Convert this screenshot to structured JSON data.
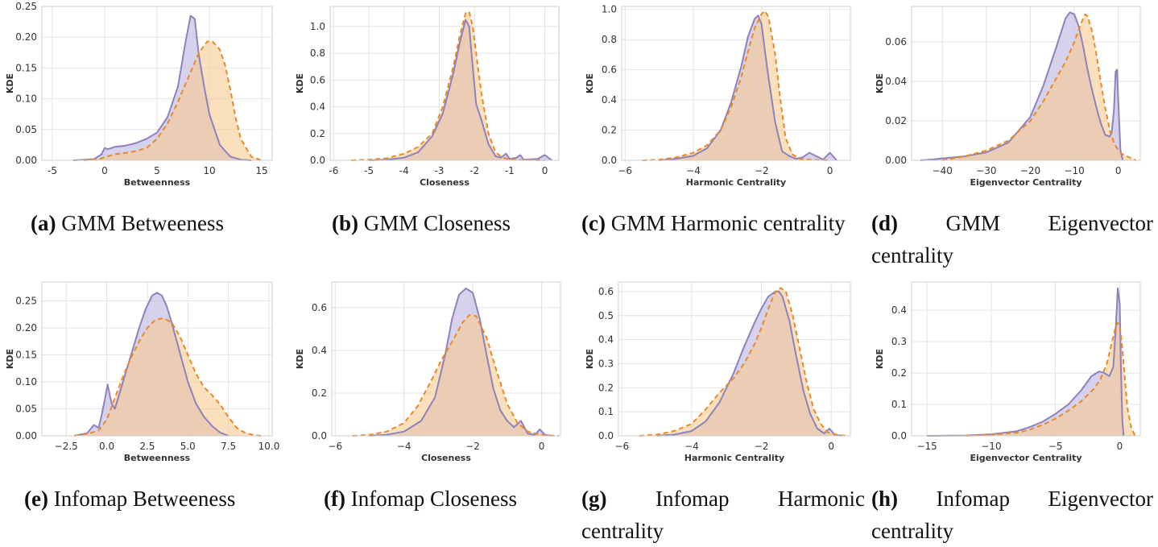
{
  "colors": {
    "purple_line": "#8e82bd",
    "purple_fill": "#cac3e6",
    "orange_line": "#e8892a",
    "orange_fill": "#f6c98f"
  },
  "chart_data": [
    {
      "type": "area",
      "id": "a",
      "xlabel": "Betweenness",
      "ylabel": "KDE",
      "xlim": [
        -6,
        16
      ],
      "ylim": [
        0,
        0.25
      ],
      "xticks": [
        -5,
        0,
        5,
        10,
        15
      ],
      "xtick_labels": [
        "-5",
        "0",
        "5",
        "10",
        "15"
      ],
      "yticks": [
        0,
        0.05,
        0.1,
        0.15,
        0.2,
        0.25
      ],
      "ytick_labels": [
        "0.00",
        "0.05",
        "0.10",
        "0.15",
        "0.20",
        "0.25"
      ],
      "caption_tag": "(a)",
      "caption_text": "GMM Betweeness",
      "series": [
        {
          "x": [
            -3,
            -1,
            -0.3,
            0,
            0.3,
            1,
            2,
            3,
            4,
            5,
            6,
            7,
            7.7,
            8.2,
            8.6,
            9,
            9.5,
            10,
            11,
            12,
            13,
            14
          ],
          "y": [
            0,
            0.002,
            0.01,
            0.02,
            0.018,
            0.022,
            0.024,
            0.028,
            0.035,
            0.045,
            0.07,
            0.12,
            0.19,
            0.235,
            0.23,
            0.17,
            0.12,
            0.075,
            0.025,
            0.006,
            0.001,
            0
          ]
        },
        {
          "x": [
            -2,
            -0.5,
            0,
            1,
            2,
            3,
            4,
            5,
            6,
            7,
            8,
            9,
            9.8,
            10.3,
            11,
            11.5,
            12,
            12.5,
            13,
            14,
            15
          ],
          "y": [
            0,
            0.002,
            0.005,
            0.01,
            0.012,
            0.015,
            0.02,
            0.035,
            0.06,
            0.095,
            0.135,
            0.175,
            0.193,
            0.193,
            0.18,
            0.155,
            0.115,
            0.07,
            0.035,
            0.006,
            0
          ]
        }
      ]
    },
    {
      "type": "area",
      "id": "b",
      "xlabel": "Closeness",
      "ylabel": "KDE",
      "xlim": [
        -6.1,
        0.4
      ],
      "ylim": [
        0,
        1.15
      ],
      "xticks": [
        -6,
        -5,
        -4,
        -3,
        -2,
        -1,
        0
      ],
      "xtick_labels": [
        "-6",
        "-5",
        "-4",
        "-3",
        "-2",
        "-1",
        "0"
      ],
      "yticks": [
        0,
        0.2,
        0.4,
        0.6,
        0.8,
        1.0
      ],
      "ytick_labels": [
        "0.0",
        "0.2",
        "0.4",
        "0.6",
        "0.8",
        "1.0"
      ],
      "caption_tag": "(b)",
      "caption_text": "GMM Closeness",
      "series": [
        {
          "x": [
            -5,
            -4.5,
            -4,
            -3.6,
            -3.2,
            -2.9,
            -2.6,
            -2.4,
            -2.25,
            -2.15,
            -2.05,
            -1.95,
            -1.8,
            -1.6,
            -1.4,
            -1.25,
            -1.1,
            -1,
            -0.8,
            -0.7,
            -0.6,
            -0.2,
            0,
            0.2
          ],
          "y": [
            0,
            0.005,
            0.02,
            0.06,
            0.18,
            0.35,
            0.65,
            0.9,
            1.05,
            1.0,
            0.7,
            0.42,
            0.3,
            0.12,
            0.03,
            0.02,
            0.05,
            0.01,
            0.02,
            0.04,
            0.005,
            0.01,
            0.04,
            0
          ]
        },
        {
          "x": [
            -5.5,
            -5,
            -4.5,
            -4,
            -3.6,
            -3.2,
            -2.9,
            -2.6,
            -2.4,
            -2.25,
            -2.15,
            -2.05,
            -1.95,
            -1.8,
            -1.6,
            -1.4,
            -1.2,
            -1,
            -0.7,
            -0.3,
            0
          ],
          "y": [
            0,
            0.005,
            0.015,
            0.05,
            0.1,
            0.2,
            0.4,
            0.7,
            0.95,
            1.1,
            1.11,
            1.0,
            0.8,
            0.5,
            0.2,
            0.06,
            0.02,
            0.008,
            0.003,
            0.001,
            0
          ]
        }
      ]
    },
    {
      "type": "area",
      "id": "c",
      "xlabel": "Harmonic Centrality",
      "ylabel": "KDE",
      "xlim": [
        -6.1,
        0.6
      ],
      "ylim": [
        0,
        1.02
      ],
      "xticks": [
        -6,
        -4,
        -2,
        0
      ],
      "xtick_labels": [
        "−6",
        "−4",
        "−2",
        "0"
      ],
      "yticks": [
        0,
        0.2,
        0.4,
        0.6,
        0.8,
        1.0
      ],
      "ytick_labels": [
        "0.0",
        "0.2",
        "0.4",
        "0.6",
        "0.8",
        "1.0"
      ],
      "caption_tag": "(c)",
      "caption_text": "GMM Harmonic centrality",
      "series": [
        {
          "x": [
            -5,
            -4.5,
            -4,
            -3.6,
            -3.2,
            -2.9,
            -2.6,
            -2.4,
            -2.2,
            -2.1,
            -2.0,
            -1.9,
            -1.8,
            -1.6,
            -1.4,
            -1.2,
            -1.0,
            -0.8,
            -0.6,
            -0.2,
            0,
            0.2
          ],
          "y": [
            0,
            0.01,
            0.03,
            0.08,
            0.2,
            0.38,
            0.62,
            0.82,
            0.94,
            0.96,
            0.9,
            0.72,
            0.55,
            0.25,
            0.06,
            0.03,
            0.01,
            0.02,
            0.05,
            0.005,
            0.05,
            0
          ]
        },
        {
          "x": [
            -5.5,
            -5,
            -4.5,
            -4,
            -3.6,
            -3.2,
            -2.9,
            -2.6,
            -2.4,
            -2.2,
            -2.0,
            -1.9,
            -1.8,
            -1.6,
            -1.45,
            -1.3,
            -1.1,
            -0.9,
            -0.6,
            -0.2,
            0
          ],
          "y": [
            0,
            0.005,
            0.02,
            0.05,
            0.1,
            0.2,
            0.35,
            0.55,
            0.72,
            0.88,
            0.97,
            0.99,
            0.95,
            0.7,
            0.4,
            0.15,
            0.04,
            0.01,
            0.005,
            0.001,
            0
          ]
        }
      ]
    },
    {
      "type": "area",
      "id": "d",
      "xlabel": "Eigenvector Centrality",
      "ylabel": "KDE",
      "xlim": [
        -47,
        5
      ],
      "ylim": [
        0,
        0.078
      ],
      "xticks": [
        -40,
        -30,
        -20,
        -10,
        0
      ],
      "xtick_labels": [
        "−40",
        "−30",
        "−20",
        "−10",
        "0"
      ],
      "yticks": [
        0,
        0.02,
        0.04,
        0.06
      ],
      "ytick_labels": [
        "0.00",
        "0.02",
        "0.04",
        "0.06"
      ],
      "caption_tag": "(d)",
      "caption_text": "GMM Eigenvector centrality",
      "series": [
        {
          "x": [
            -45,
            -42,
            -40,
            -35,
            -30,
            -25,
            -20,
            -17,
            -14,
            -12,
            -11,
            -10,
            -9,
            -8,
            -7,
            -6,
            -5,
            -4,
            -3,
            -2,
            -1.5,
            -1,
            -0.6,
            -0.3,
            0,
            0.5,
            1
          ],
          "y": [
            0,
            0.0005,
            0.001,
            0.002,
            0.004,
            0.009,
            0.022,
            0.038,
            0.058,
            0.072,
            0.075,
            0.074,
            0.068,
            0.058,
            0.046,
            0.036,
            0.027,
            0.019,
            0.013,
            0.012,
            0.014,
            0.025,
            0.045,
            0.046,
            0.03,
            0.005,
            0
          ]
        },
        {
          "x": [
            -40,
            -35,
            -30,
            -25,
            -20,
            -17,
            -14,
            -12,
            -10,
            -9,
            -8,
            -7.5,
            -7,
            -6,
            -5,
            -4,
            -3,
            -2,
            -1,
            0,
            1,
            2,
            3,
            4
          ],
          "y": [
            0,
            0.002,
            0.005,
            0.01,
            0.02,
            0.03,
            0.042,
            0.05,
            0.06,
            0.066,
            0.072,
            0.074,
            0.073,
            0.066,
            0.054,
            0.04,
            0.027,
            0.016,
            0.009,
            0.005,
            0.003,
            0.002,
            0.001,
            0
          ]
        }
      ]
    },
    {
      "type": "area",
      "id": "e",
      "xlabel": "Betweenness",
      "ylabel": "KDE",
      "xlim": [
        -4,
        10.2
      ],
      "ylim": [
        0,
        0.285
      ],
      "xticks": [
        -2.5,
        0,
        2.5,
        5,
        7.5,
        10
      ],
      "xtick_labels": [
        "−2.5",
        "0.0",
        "2.5",
        "5.0",
        "7.5",
        "10.0"
      ],
      "yticks": [
        0,
        0.05,
        0.1,
        0.15,
        0.2,
        0.25
      ],
      "ytick_labels": [
        "0.00",
        "0.05",
        "0.10",
        "0.15",
        "0.20",
        "0.25"
      ],
      "caption_tag": "(e)",
      "caption_text": "Infomap Betweeness",
      "series": [
        {
          "x": [
            -2,
            -1.2,
            -0.8,
            -0.5,
            -0.3,
            -0.1,
            0.05,
            0.3,
            0.5,
            0.8,
            1.2,
            1.6,
            2.0,
            2.4,
            2.8,
            3.1,
            3.4,
            3.7,
            4.0,
            4.5,
            5.0,
            5.5,
            6.0,
            6.5,
            7.0,
            7.5
          ],
          "y": [
            0,
            0.005,
            0.02,
            0.015,
            0.04,
            0.07,
            0.095,
            0.06,
            0.05,
            0.08,
            0.12,
            0.16,
            0.2,
            0.235,
            0.26,
            0.265,
            0.26,
            0.24,
            0.21,
            0.155,
            0.1,
            0.06,
            0.035,
            0.018,
            0.006,
            0
          ]
        },
        {
          "x": [
            -2,
            -1,
            -0.5,
            0,
            0.5,
            1,
            1.5,
            2,
            2.5,
            3,
            3.5,
            4,
            4.5,
            5,
            5.5,
            6,
            6.5,
            7,
            7.5,
            8,
            8.5,
            9,
            9.5
          ],
          "y": [
            0,
            0.005,
            0.01,
            0.03,
            0.07,
            0.11,
            0.145,
            0.175,
            0.2,
            0.215,
            0.218,
            0.21,
            0.185,
            0.15,
            0.115,
            0.09,
            0.075,
            0.058,
            0.035,
            0.015,
            0.006,
            0.002,
            0
          ]
        }
      ]
    },
    {
      "type": "area",
      "id": "f",
      "xlabel": "Closeness",
      "ylabel": "KDE",
      "xlim": [
        -6.1,
        0.55
      ],
      "ylim": [
        0,
        0.72
      ],
      "xticks": [
        -6,
        -4,
        -2,
        0
      ],
      "xtick_labels": [
        "−6",
        "−4",
        "−2",
        "0"
      ],
      "yticks": [
        0,
        0.2,
        0.4,
        0.6
      ],
      "ytick_labels": [
        "0.0",
        "0.2",
        "0.4",
        "0.6"
      ],
      "caption_tag": "(f)",
      "caption_text": "Infomap Closeness",
      "series": [
        {
          "x": [
            -5,
            -4.5,
            -4,
            -3.5,
            -3.1,
            -2.8,
            -2.6,
            -2.4,
            -2.2,
            -2.0,
            -1.8,
            -1.6,
            -1.4,
            -1.2,
            -1.0,
            -0.8,
            -0.6,
            -0.4,
            -0.2,
            -0.05,
            0.1,
            0.3
          ],
          "y": [
            0,
            0.005,
            0.02,
            0.07,
            0.18,
            0.38,
            0.55,
            0.66,
            0.69,
            0.67,
            0.55,
            0.38,
            0.22,
            0.12,
            0.07,
            0.04,
            0.07,
            0.01,
            0.005,
            0.03,
            0.005,
            0
          ]
        },
        {
          "x": [
            -5.5,
            -5,
            -4.5,
            -4,
            -3.6,
            -3.2,
            -2.9,
            -2.6,
            -2.3,
            -2.1,
            -1.9,
            -1.6,
            -1.3,
            -1.0,
            -0.7,
            -0.4,
            -0.1,
            0.2,
            0.5
          ],
          "y": [
            0,
            0.005,
            0.02,
            0.06,
            0.14,
            0.26,
            0.36,
            0.44,
            0.53,
            0.565,
            0.56,
            0.46,
            0.3,
            0.15,
            0.06,
            0.02,
            0.008,
            0.002,
            0
          ]
        }
      ]
    },
    {
      "type": "area",
      "id": "g",
      "xlabel": "Harmonic Centrality",
      "ylabel": "KDE",
      "xlim": [
        -6.1,
        0.55
      ],
      "ylim": [
        0,
        0.64
      ],
      "xticks": [
        -6,
        -4,
        -2,
        0
      ],
      "xtick_labels": [
        "−6",
        "−4",
        "−2",
        "0"
      ],
      "yticks": [
        0,
        0.1,
        0.2,
        0.3,
        0.4,
        0.5,
        0.6
      ],
      "ytick_labels": [
        "0.0",
        "0.1",
        "0.2",
        "0.3",
        "0.4",
        "0.5",
        "0.6"
      ],
      "caption_tag": "(g)",
      "caption_text": "Infomap Harmonic centrality",
      "series": [
        {
          "x": [
            -5,
            -4.5,
            -4,
            -3.6,
            -3.2,
            -2.8,
            -2.5,
            -2.2,
            -2.0,
            -1.8,
            -1.6,
            -1.5,
            -1.4,
            -1.2,
            -1.0,
            -0.8,
            -0.6,
            -0.4,
            -0.2,
            -0.05,
            0.1,
            0.3
          ],
          "y": [
            0,
            0.005,
            0.02,
            0.06,
            0.14,
            0.26,
            0.37,
            0.47,
            0.53,
            0.58,
            0.6,
            0.6,
            0.58,
            0.48,
            0.33,
            0.19,
            0.09,
            0.03,
            0.01,
            0.03,
            0.005,
            0
          ]
        },
        {
          "x": [
            -5.5,
            -5,
            -4.5,
            -4,
            -3.6,
            -3.2,
            -2.8,
            -2.5,
            -2.2,
            -2.0,
            -1.8,
            -1.6,
            -1.45,
            -1.3,
            -1.1,
            -0.9,
            -0.7,
            -0.5,
            -0.3,
            -0.1,
            0.2,
            0.5
          ],
          "y": [
            0,
            0.005,
            0.02,
            0.05,
            0.11,
            0.18,
            0.24,
            0.3,
            0.38,
            0.45,
            0.53,
            0.6,
            0.615,
            0.6,
            0.5,
            0.36,
            0.22,
            0.11,
            0.05,
            0.015,
            0.003,
            0
          ]
        }
      ]
    },
    {
      "type": "area",
      "id": "h",
      "xlabel": "Eigenvector Centrality",
      "ylabel": "KDE",
      "xlim": [
        -16.2,
        1.6
      ],
      "ylim": [
        0,
        0.49
      ],
      "xticks": [
        -15,
        -10,
        -5,
        0
      ],
      "xtick_labels": [
        "−15",
        "−10",
        "−5",
        "0"
      ],
      "yticks": [
        0,
        0.1,
        0.2,
        0.3,
        0.4
      ],
      "ytick_labels": [
        "0.0",
        "0.1",
        "0.2",
        "0.3",
        "0.4"
      ],
      "caption_tag": "(h)",
      "caption_text": "Infomap Eigenvector centrality",
      "series": [
        {
          "x": [
            -15,
            -12,
            -10,
            -8,
            -7,
            -6,
            -5,
            -4,
            -3,
            -2.2,
            -1.6,
            -1.2,
            -0.8,
            -0.5,
            -0.3,
            -0.15,
            0,
            0.1,
            0.2,
            0.3
          ],
          "y": [
            0,
            0.001,
            0.005,
            0.015,
            0.028,
            0.045,
            0.07,
            0.1,
            0.145,
            0.19,
            0.205,
            0.2,
            0.19,
            0.22,
            0.35,
            0.47,
            0.42,
            0.2,
            0.05,
            0
          ]
        },
        {
          "x": [
            -12,
            -10,
            -8,
            -7,
            -6,
            -5,
            -4,
            -3,
            -2,
            -1.5,
            -1,
            -0.6,
            -0.3,
            -0.15,
            0,
            0.2,
            0.4,
            0.6,
            0.9,
            1.2
          ],
          "y": [
            0,
            0.003,
            0.01,
            0.02,
            0.035,
            0.055,
            0.08,
            0.11,
            0.15,
            0.18,
            0.23,
            0.3,
            0.35,
            0.36,
            0.35,
            0.28,
            0.18,
            0.09,
            0.025,
            0
          ]
        }
      ]
    }
  ]
}
